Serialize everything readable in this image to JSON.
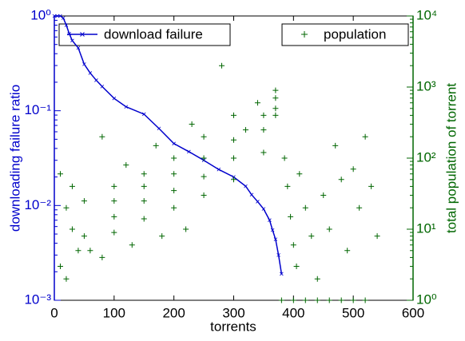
{
  "chart_data": {
    "type": "line",
    "xlabel": "torrents",
    "ylabel": "downloading failure ratio",
    "y2label": "total population of torrent",
    "xlim": [
      0,
      600
    ],
    "xticks": [
      0,
      100,
      200,
      300,
      400,
      500,
      600
    ],
    "ylim": [
      0.001,
      1
    ],
    "ylog": true,
    "yticks": [
      {
        "value": 0.001,
        "label": "10⁻³"
      },
      {
        "value": 0.01,
        "label": "10⁻²"
      },
      {
        "value": 0.1,
        "label": "10⁻¹"
      },
      {
        "value": 1,
        "label": "10⁰"
      }
    ],
    "y2lim": [
      1,
      10000
    ],
    "y2log": true,
    "y2ticks": [
      {
        "value": 1,
        "label": "10⁰"
      },
      {
        "value": 10,
        "label": "10¹"
      },
      {
        "value": 100,
        "label": "10²"
      },
      {
        "value": 1000,
        "label": "10³"
      },
      {
        "value": 10000,
        "label": "10⁴"
      }
    ],
    "series": [
      {
        "name": "download failure",
        "color": "#0000cc",
        "type": "line",
        "axis": "y",
        "x": [
          0,
          5,
          10,
          15,
          20,
          25,
          30,
          40,
          50,
          60,
          70,
          80,
          100,
          120,
          150,
          175,
          200,
          225,
          250,
          275,
          300,
          320,
          330,
          340,
          350,
          360,
          365,
          370,
          375,
          380
        ],
        "values": [
          1,
          1,
          1,
          0.95,
          0.8,
          0.65,
          0.55,
          0.46,
          0.31,
          0.25,
          0.21,
          0.18,
          0.135,
          0.11,
          0.092,
          0.065,
          0.045,
          0.037,
          0.03,
          0.024,
          0.02,
          0.016,
          0.013,
          0.011,
          0.0092,
          0.007,
          0.0055,
          0.0044,
          0.003,
          0.0019
        ]
      },
      {
        "name": "population",
        "color": "#006600",
        "type": "scatter",
        "axis": "y2",
        "x": [
          20,
          50,
          100,
          150,
          200,
          250,
          300,
          340,
          370,
          30,
          100,
          150,
          200,
          250,
          300,
          350,
          370,
          50,
          100,
          150,
          200,
          250,
          300,
          350,
          370,
          60,
          100,
          150,
          200,
          250,
          300,
          350,
          370,
          10,
          30,
          80,
          120,
          170,
          230,
          280,
          320,
          10,
          20,
          40,
          80,
          130,
          180,
          220,
          385,
          390,
          395,
          400,
          405,
          410,
          420,
          430,
          440,
          450,
          460,
          470,
          480,
          490,
          500,
          510,
          520,
          530,
          540,
          380,
          400,
          420,
          440,
          460,
          480,
          500,
          520
        ],
        "values": [
          20,
          25,
          40,
          60,
          100,
          200,
          400,
          600,
          900,
          10,
          25,
          40,
          60,
          100,
          180,
          400,
          700,
          8,
          15,
          25,
          35,
          55,
          100,
          250,
          500,
          5,
          9,
          14,
          20,
          30,
          50,
          120,
          400,
          60,
          40,
          200,
          80,
          150,
          300,
          2000,
          250,
          3,
          2,
          5,
          4,
          6,
          8,
          10,
          100,
          40,
          15,
          6,
          3,
          60,
          20,
          8,
          2,
          30,
          10,
          150,
          50,
          5,
          70,
          20,
          200,
          40,
          8,
          1,
          1,
          1,
          1,
          1,
          1,
          1,
          1
        ]
      }
    ]
  }
}
